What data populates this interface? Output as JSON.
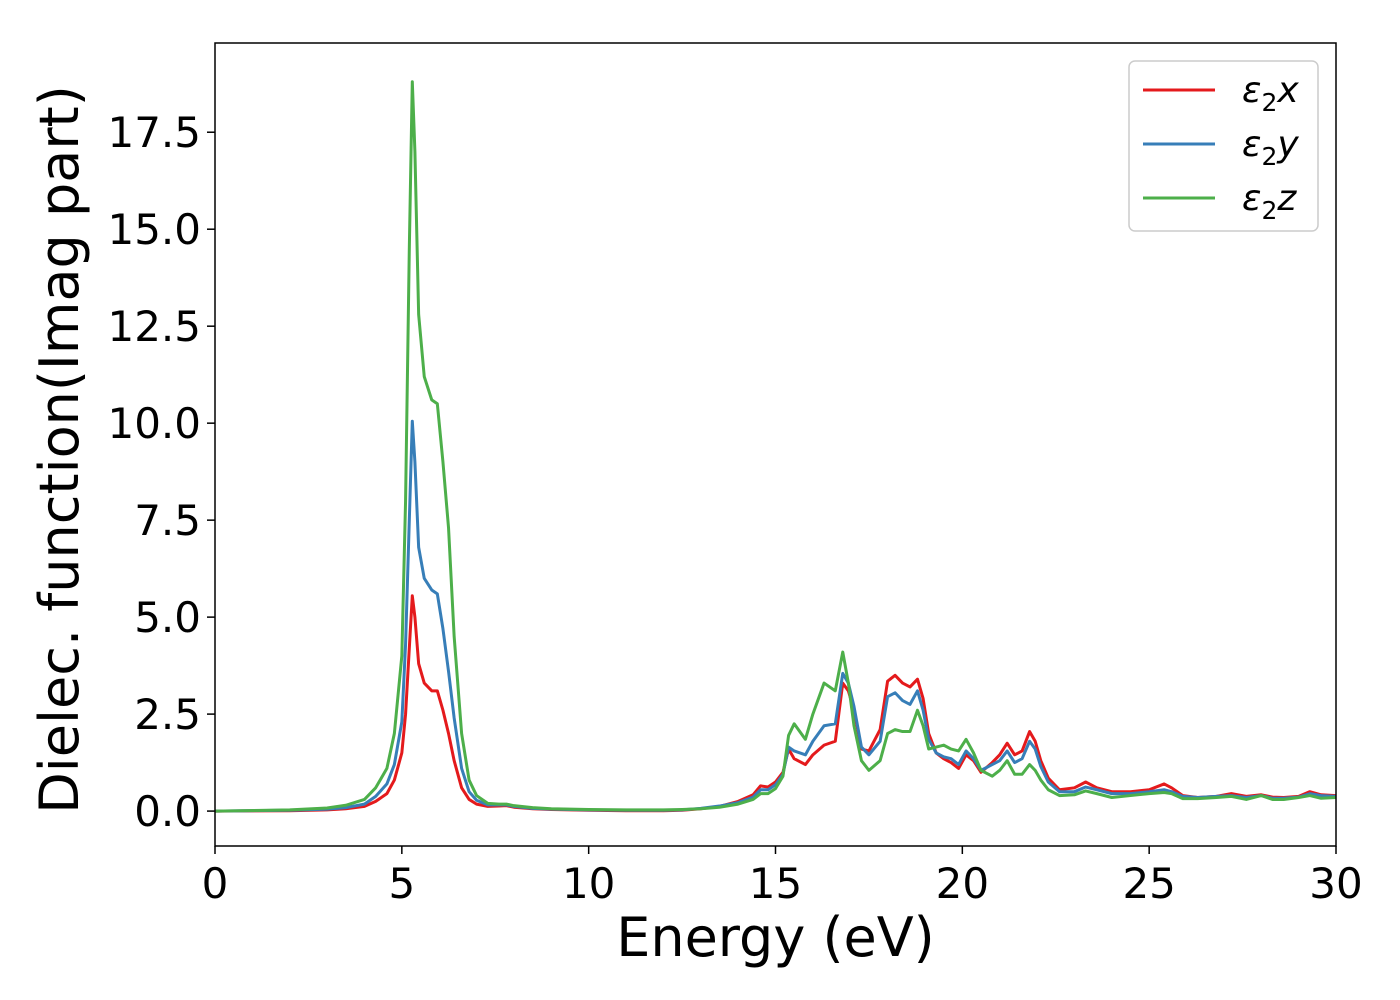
{
  "chart_data": {
    "type": "line",
    "xlabel": "Energy (eV)",
    "ylabel": "Dielec. function(Imag part)",
    "xlim": [
      0,
      30
    ],
    "ylim": [
      -0.9,
      19.8
    ],
    "xticks": [
      0,
      5,
      10,
      15,
      20,
      25,
      30
    ],
    "xtick_labels": [
      "0",
      "5",
      "10",
      "15",
      "20",
      "25",
      "30"
    ],
    "yticks": [
      0.0,
      2.5,
      5.0,
      7.5,
      10.0,
      12.5,
      15.0,
      17.5
    ],
    "ytick_labels": [
      "0.0",
      "2.5",
      "5.0",
      "7.5",
      "10.0",
      "12.5",
      "15.0",
      "17.5"
    ],
    "grid": false,
    "legend_position": "top-right",
    "series": [
      {
        "name": "ε2x",
        "legend_base": "ε",
        "legend_sub": "2",
        "legend_tail": "x",
        "color": "#e41a1c",
        "x": [
          0,
          2,
          3,
          3.5,
          4,
          4.3,
          4.6,
          4.8,
          5.0,
          5.1,
          5.2,
          5.28,
          5.35,
          5.45,
          5.6,
          5.8,
          5.95,
          6.1,
          6.25,
          6.4,
          6.6,
          6.8,
          7.0,
          7.3,
          7.6,
          7.8,
          8.0,
          8.5,
          9,
          10,
          11,
          12,
          12.5,
          13.0,
          13.5,
          14.0,
          14.4,
          14.6,
          14.8,
          15.0,
          15.2,
          15.35,
          15.5,
          15.8,
          16.0,
          16.3,
          16.6,
          16.8,
          16.95,
          17.1,
          17.3,
          17.5,
          17.8,
          18.0,
          18.2,
          18.4,
          18.6,
          18.8,
          18.95,
          19.1,
          19.3,
          19.5,
          19.7,
          19.9,
          20.1,
          20.3,
          20.5,
          20.8,
          21.0,
          21.2,
          21.4,
          21.6,
          21.8,
          21.95,
          22.1,
          22.3,
          22.6,
          23.0,
          23.3,
          23.6,
          24.0,
          24.5,
          25.0,
          25.4,
          25.6,
          25.9,
          26.3,
          26.8,
          27.2,
          27.6,
          28.0,
          28.3,
          28.6,
          29.0,
          29.3,
          29.6,
          30.0
        ],
        "y": [
          0.0,
          0.01,
          0.03,
          0.06,
          0.12,
          0.25,
          0.45,
          0.8,
          1.5,
          2.5,
          4.2,
          5.55,
          5.0,
          3.8,
          3.3,
          3.1,
          3.1,
          2.6,
          2.0,
          1.3,
          0.6,
          0.3,
          0.18,
          0.12,
          0.13,
          0.14,
          0.1,
          0.06,
          0.04,
          0.02,
          0.01,
          0.01,
          0.02,
          0.06,
          0.12,
          0.25,
          0.42,
          0.65,
          0.62,
          0.75,
          1.0,
          1.6,
          1.35,
          1.2,
          1.45,
          1.7,
          1.8,
          3.3,
          3.1,
          2.6,
          1.6,
          1.55,
          2.1,
          3.35,
          3.5,
          3.3,
          3.2,
          3.4,
          2.9,
          2.0,
          1.5,
          1.35,
          1.25,
          1.1,
          1.45,
          1.3,
          1.0,
          1.25,
          1.45,
          1.75,
          1.45,
          1.55,
          2.05,
          1.8,
          1.3,
          0.85,
          0.55,
          0.6,
          0.75,
          0.6,
          0.5,
          0.5,
          0.55,
          0.7,
          0.6,
          0.4,
          0.35,
          0.38,
          0.45,
          0.38,
          0.42,
          0.36,
          0.35,
          0.38,
          0.5,
          0.42,
          0.4
        ]
      },
      {
        "name": "ε2y",
        "legend_base": "ε",
        "legend_sub": "2",
        "legend_tail": "y",
        "color": "#377eb8",
        "x": [
          0,
          2,
          3,
          3.5,
          4,
          4.3,
          4.6,
          4.8,
          5.0,
          5.1,
          5.2,
          5.28,
          5.35,
          5.45,
          5.6,
          5.8,
          5.95,
          6.1,
          6.25,
          6.4,
          6.6,
          6.8,
          7.0,
          7.3,
          7.6,
          7.8,
          8.0,
          8.5,
          9,
          10,
          11,
          12,
          12.5,
          13.0,
          13.5,
          14.0,
          14.4,
          14.6,
          14.8,
          15.0,
          15.2,
          15.35,
          15.5,
          15.8,
          16.0,
          16.3,
          16.6,
          16.8,
          16.95,
          17.1,
          17.3,
          17.5,
          17.8,
          18.0,
          18.2,
          18.4,
          18.6,
          18.8,
          18.95,
          19.1,
          19.3,
          19.5,
          19.7,
          19.9,
          20.1,
          20.3,
          20.5,
          20.8,
          21.0,
          21.2,
          21.4,
          21.6,
          21.8,
          21.95,
          22.1,
          22.3,
          22.6,
          23.0,
          23.3,
          23.6,
          24.0,
          24.5,
          25.0,
          25.4,
          25.6,
          25.9,
          26.3,
          26.8,
          27.2,
          27.6,
          28.0,
          28.3,
          28.6,
          29.0,
          29.3,
          29.6,
          30.0
        ],
        "y": [
          0.0,
          0.02,
          0.05,
          0.09,
          0.18,
          0.38,
          0.7,
          1.2,
          2.3,
          4.3,
          7.5,
          10.05,
          9.0,
          6.8,
          6.0,
          5.7,
          5.6,
          4.7,
          3.6,
          2.4,
          1.1,
          0.5,
          0.28,
          0.16,
          0.16,
          0.16,
          0.12,
          0.07,
          0.05,
          0.03,
          0.02,
          0.02,
          0.03,
          0.07,
          0.13,
          0.22,
          0.36,
          0.55,
          0.55,
          0.68,
          0.95,
          1.65,
          1.55,
          1.45,
          1.8,
          2.2,
          2.25,
          3.55,
          3.3,
          2.7,
          1.65,
          1.45,
          1.8,
          2.95,
          3.05,
          2.85,
          2.75,
          3.1,
          2.6,
          1.85,
          1.5,
          1.4,
          1.35,
          1.2,
          1.55,
          1.35,
          1.05,
          1.2,
          1.3,
          1.55,
          1.25,
          1.35,
          1.8,
          1.6,
          1.15,
          0.75,
          0.5,
          0.5,
          0.62,
          0.55,
          0.45,
          0.45,
          0.5,
          0.55,
          0.5,
          0.38,
          0.35,
          0.38,
          0.4,
          0.35,
          0.4,
          0.33,
          0.33,
          0.36,
          0.45,
          0.4,
          0.38
        ]
      },
      {
        "name": "ε2z",
        "legend_base": "ε",
        "legend_sub": "2",
        "legend_tail": "z",
        "color": "#4daf4a",
        "x": [
          0,
          2,
          3,
          3.5,
          4,
          4.3,
          4.6,
          4.8,
          5.0,
          5.1,
          5.2,
          5.28,
          5.35,
          5.45,
          5.6,
          5.8,
          5.95,
          6.1,
          6.25,
          6.4,
          6.6,
          6.8,
          7.0,
          7.3,
          7.6,
          7.8,
          8.0,
          8.5,
          9,
          10,
          11,
          12,
          12.5,
          13.0,
          13.5,
          14.0,
          14.4,
          14.6,
          14.8,
          15.0,
          15.2,
          15.35,
          15.5,
          15.8,
          16.0,
          16.3,
          16.6,
          16.8,
          16.95,
          17.1,
          17.3,
          17.5,
          17.8,
          18.0,
          18.2,
          18.4,
          18.6,
          18.8,
          18.95,
          19.1,
          19.3,
          19.5,
          19.7,
          19.9,
          20.1,
          20.3,
          20.5,
          20.8,
          21.0,
          21.2,
          21.4,
          21.6,
          21.8,
          21.95,
          22.1,
          22.3,
          22.6,
          23.0,
          23.3,
          23.6,
          24.0,
          24.5,
          25.0,
          25.4,
          25.6,
          25.9,
          26.3,
          26.8,
          27.2,
          27.6,
          28.0,
          28.3,
          28.6,
          29.0,
          29.3,
          29.6,
          30.0
        ],
        "y": [
          0.0,
          0.03,
          0.08,
          0.15,
          0.3,
          0.6,
          1.1,
          2.0,
          4.0,
          8.0,
          14.5,
          18.8,
          17.0,
          12.8,
          11.2,
          10.6,
          10.5,
          9.0,
          7.3,
          4.5,
          2.0,
          0.8,
          0.4,
          0.2,
          0.18,
          0.18,
          0.14,
          0.09,
          0.06,
          0.04,
          0.03,
          0.03,
          0.04,
          0.06,
          0.1,
          0.18,
          0.3,
          0.45,
          0.45,
          0.58,
          0.9,
          1.95,
          2.25,
          1.85,
          2.5,
          3.3,
          3.1,
          4.1,
          3.3,
          2.2,
          1.3,
          1.05,
          1.3,
          2.0,
          2.1,
          2.05,
          2.05,
          2.6,
          2.2,
          1.6,
          1.65,
          1.7,
          1.6,
          1.55,
          1.85,
          1.5,
          1.05,
          0.9,
          1.05,
          1.3,
          0.95,
          0.95,
          1.2,
          1.05,
          0.8,
          0.55,
          0.4,
          0.42,
          0.52,
          0.45,
          0.35,
          0.4,
          0.45,
          0.48,
          0.45,
          0.32,
          0.32,
          0.35,
          0.38,
          0.3,
          0.4,
          0.3,
          0.3,
          0.35,
          0.4,
          0.33,
          0.35
        ]
      }
    ]
  }
}
